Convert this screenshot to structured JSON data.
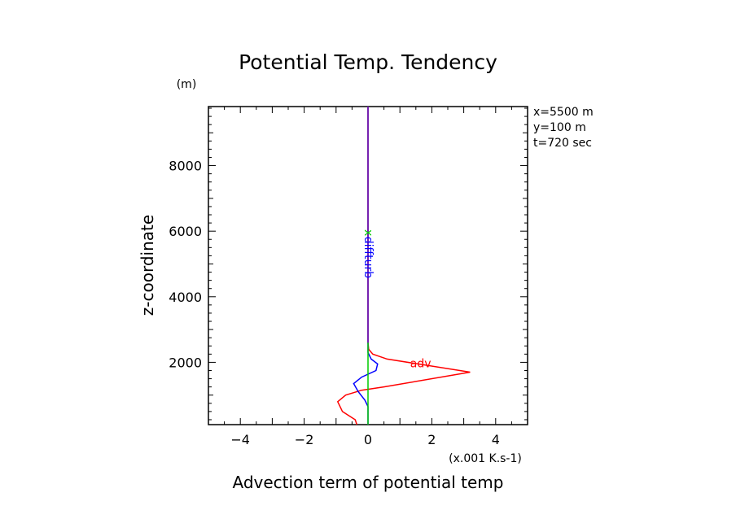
{
  "chart_data": {
    "type": "line",
    "title": "Potential Temp. Tendency",
    "xlabel": "Advection term of potential temp",
    "x_unit": "(x.001 K.s-1)",
    "ylabel": "z-coordinate",
    "y_unit": "(m)",
    "xlim": [
      -5,
      5
    ],
    "ylim": [
      100,
      9800
    ],
    "xticks": [
      -4,
      -2,
      0,
      2,
      4
    ],
    "xtick_labels": [
      "−4",
      "−2",
      "0",
      "2",
      "4"
    ],
    "yticks": [
      2000,
      4000,
      6000,
      8000
    ],
    "ytick_labels": [
      "2000",
      "4000",
      "6000",
      "8000"
    ],
    "grid": false,
    "info_lines": [
      "x=5500 m",
      "y=100 m",
      "t=720 sec"
    ],
    "series": [
      {
        "name": "adv",
        "color": "#ff0000",
        "points": [
          [
            -0.35,
            100
          ],
          [
            -0.4,
            250
          ],
          [
            -0.8,
            500
          ],
          [
            -0.95,
            800
          ],
          [
            -0.7,
            1000
          ],
          [
            -0.2,
            1150
          ],
          [
            0.5,
            1250
          ],
          [
            3.2,
            1700
          ],
          [
            0.6,
            2100
          ],
          [
            0.15,
            2250
          ],
          [
            0.02,
            2400
          ],
          [
            0,
            2600
          ],
          [
            0,
            9800
          ]
        ]
      },
      {
        "name": "diff",
        "color": "#0000ff",
        "points": [
          [
            0,
            100
          ],
          [
            0,
            650
          ],
          [
            -0.1,
            850
          ],
          [
            -0.3,
            1100
          ],
          [
            -0.45,
            1350
          ],
          [
            -0.2,
            1550
          ],
          [
            0.25,
            1750
          ],
          [
            0.3,
            1950
          ],
          [
            0.1,
            2100
          ],
          [
            0,
            2300
          ],
          [
            0,
            9800
          ]
        ]
      },
      {
        "name": "",
        "color": "#00cc00",
        "points": [
          [
            0,
            100
          ],
          [
            0,
            9800
          ]
        ]
      },
      {
        "name": "",
        "color": "#8800cc",
        "points": [
          [
            0,
            2600
          ],
          [
            0,
            9800
          ]
        ]
      }
    ],
    "annotations": [
      {
        "text": "adv",
        "x": 1.65,
        "y": 1950,
        "color": "#ff0000",
        "rotate": 0
      },
      {
        "text": "diffturb",
        "x": 0,
        "y": 5200,
        "color": "#0000ff",
        "rotate": 90
      },
      {
        "text": "x",
        "x": 0,
        "y": 5950,
        "color": "#00cc00",
        "rotate": 90
      }
    ]
  }
}
